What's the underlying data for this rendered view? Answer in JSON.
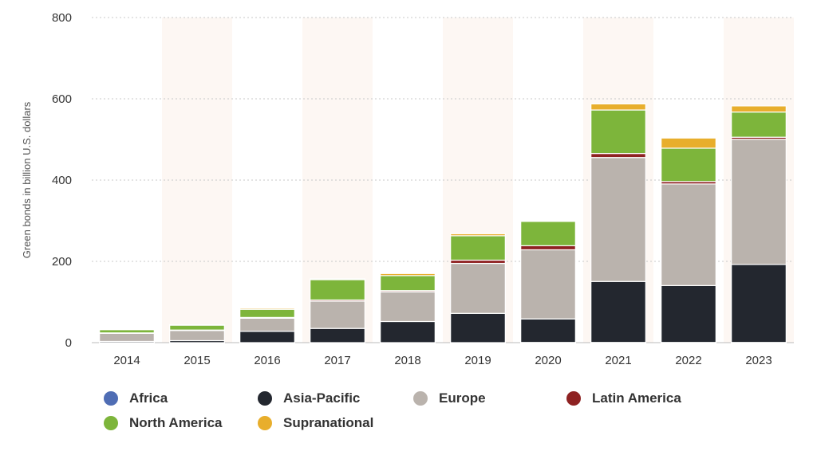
{
  "chart_data": {
    "type": "bar",
    "stacked": true,
    "title": "",
    "xlabel": "",
    "ylabel": "Green bonds in billion U.S. dollars",
    "ylim": [
      0,
      800
    ],
    "yticks": [
      "0",
      "200",
      "400",
      "600",
      "800"
    ],
    "grid": true,
    "legend_position": "bottom",
    "categories": [
      "2014",
      "2015",
      "2016",
      "2017",
      "2018",
      "2019",
      "2020",
      "2021",
      "2022",
      "2023"
    ],
    "series": [
      {
        "name": "Africa",
        "color": "#4f6db4",
        "values": [
          0,
          0,
          0,
          0,
          0,
          0,
          0.5,
          0.5,
          0.5,
          0.5
        ]
      },
      {
        "name": "Asia-Pacific",
        "color": "#23272f",
        "values": [
          3,
          5,
          28,
          35,
          52,
          72,
          58,
          150,
          140,
          192
        ]
      },
      {
        "name": "Europe",
        "color": "#bab3ad",
        "values": [
          20,
          25,
          32,
          67,
          73,
          123,
          170,
          305,
          250,
          308
        ]
      },
      {
        "name": "Latin America",
        "color": "#8e2222",
        "values": [
          1,
          1,
          2,
          3,
          3,
          8,
          10,
          10,
          6,
          5
        ]
      },
      {
        "name": "North America",
        "color": "#7db53b",
        "values": [
          8,
          12,
          20,
          50,
          37,
          60,
          60,
          107,
          82,
          62
        ]
      },
      {
        "name": "Supranational",
        "color": "#e8ae2c",
        "values": [
          1,
          1,
          3,
          2,
          5,
          5,
          2,
          15,
          25,
          15
        ]
      }
    ]
  }
}
